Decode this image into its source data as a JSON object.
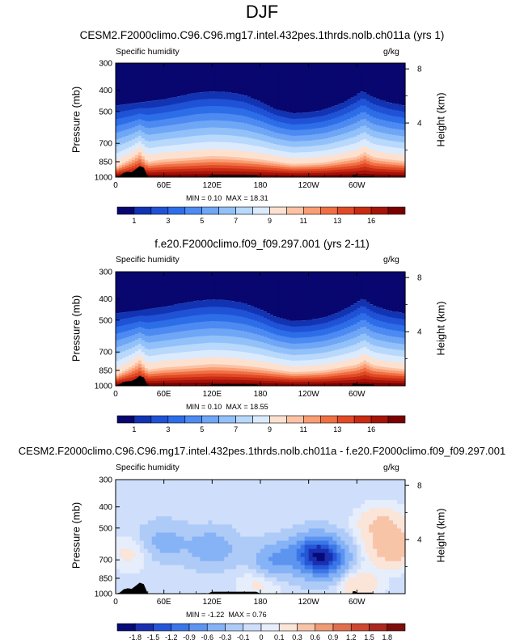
{
  "figure": {
    "title": "DJF",
    "variable_label": "Specific humidity",
    "units_label": "g/kg",
    "left_axis_label": "Pressure (mb)",
    "right_axis_label": "Height (km)"
  },
  "colors": {
    "abs_palette": [
      "#08066f",
      "#1234b3",
      "#2052d6",
      "#2d6ee8",
      "#4d8af2",
      "#6fa6f6",
      "#92c1fa",
      "#b8d8fc",
      "#dbebfd",
      "#fde1d0",
      "#fcc2a3",
      "#f99d74",
      "#f07044",
      "#e04a26",
      "#c92a12",
      "#a51408",
      "#7a0000"
    ],
    "diff_palette": [
      "#070b77",
      "#1a2fb0",
      "#2456d6",
      "#3b76e8",
      "#5d94f0",
      "#86b2f6",
      "#aecbf8",
      "#cfdffb",
      "#e6eefc",
      "#fbe4d8",
      "#f7c4a8",
      "#ef9b76",
      "#e06f4d",
      "#cc4832",
      "#aa281d",
      "#7c0d0a"
    ],
    "topography": "#000000"
  },
  "chart_data": [
    {
      "type": "heatmap",
      "panel": 1,
      "title": "CESM2.F2000climo.C96.C96.mg17.intel.432pes.1thrds.nolb.ch011a (yrs 1)",
      "variable": "Specific humidity",
      "units": "g/kg",
      "xlabel": "",
      "ylabel": "Pressure (mb)",
      "ylabel_right": "Height (km)",
      "x_ticks": [
        "0",
        "60E",
        "120E",
        "180",
        "120W",
        "60W"
      ],
      "x_tick_values": [
        0,
        60,
        120,
        180,
        240,
        300
      ],
      "xlim": [
        0,
        360
      ],
      "y_ticks": [
        "300",
        "400",
        "500",
        "700",
        "850",
        "1000"
      ],
      "y_tick_values": [
        300,
        400,
        500,
        700,
        850,
        1000
      ],
      "ylim": [
        300,
        1000
      ],
      "right_ticks": [
        "8",
        "4"
      ],
      "right_tick_values": [
        8,
        4
      ],
      "min": 0.1,
      "max": 18.31,
      "min_label": "MIN =",
      "min_text": "0.10",
      "max_label": "MAX =",
      "max_text": "18.31",
      "colorbar_labels": [
        "1",
        "3",
        "5",
        "7",
        "9",
        "11",
        "13",
        "16"
      ],
      "tropopause_pressure": [
        [
          0,
          470
        ],
        [
          20,
          460
        ],
        [
          40,
          450
        ],
        [
          60,
          440
        ],
        [
          80,
          425
        ],
        [
          100,
          410
        ],
        [
          120,
          405
        ],
        [
          140,
          408
        ],
        [
          160,
          420
        ],
        [
          180,
          450
        ],
        [
          200,
          490
        ],
        [
          220,
          510
        ],
        [
          240,
          505
        ],
        [
          260,
          490
        ],
        [
          280,
          460
        ],
        [
          300,
          420
        ],
        [
          305,
          405
        ],
        [
          310,
          408
        ],
        [
          320,
          430
        ],
        [
          340,
          455
        ],
        [
          360,
          470
        ]
      ],
      "surface_moist_top": [
        [
          0,
          900
        ],
        [
          20,
          820
        ],
        [
          30,
          770
        ],
        [
          40,
          850
        ],
        [
          60,
          830
        ],
        [
          80,
          820
        ],
        [
          100,
          810
        ],
        [
          120,
          800
        ],
        [
          140,
          805
        ],
        [
          160,
          815
        ],
        [
          180,
          830
        ],
        [
          200,
          850
        ],
        [
          220,
          870
        ],
        [
          240,
          865
        ],
        [
          260,
          855
        ],
        [
          280,
          830
        ],
        [
          300,
          805
        ],
        [
          310,
          770
        ],
        [
          320,
          810
        ],
        [
          340,
          830
        ],
        [
          360,
          845
        ]
      ],
      "topography_pressure": [
        [
          0,
          1000
        ],
        [
          5,
          990
        ],
        [
          10,
          955
        ],
        [
          15,
          945
        ],
        [
          20,
          950
        ],
        [
          25,
          920
        ],
        [
          30,
          890
        ],
        [
          35,
          905
        ],
        [
          40,
          1000
        ],
        [
          55,
          1000
        ],
        [
          110,
          995
        ],
        [
          112,
          995
        ],
        [
          114,
          1000
        ],
        [
          120,
          980
        ],
        [
          175,
          980
        ],
        [
          180,
          1000
        ],
        [
          294,
          1000
        ],
        [
          295,
          975
        ],
        [
          298,
          975
        ],
        [
          300,
          990
        ],
        [
          320,
          990
        ],
        [
          322,
          1000
        ],
        [
          360,
          1000
        ]
      ]
    },
    {
      "type": "heatmap",
      "panel": 2,
      "title": "f.e20.F2000climo.f09_f09.297.001 (yrs 2-11)",
      "variable": "Specific humidity",
      "units": "g/kg",
      "xlabel": "",
      "ylabel": "Pressure (mb)",
      "ylabel_right": "Height (km)",
      "x_ticks": [
        "0",
        "60E",
        "120E",
        "180",
        "120W",
        "60W"
      ],
      "x_tick_values": [
        0,
        60,
        120,
        180,
        240,
        300
      ],
      "xlim": [
        0,
        360
      ],
      "y_ticks": [
        "300",
        "400",
        "500",
        "700",
        "850",
        "1000"
      ],
      "y_tick_values": [
        300,
        400,
        500,
        700,
        850,
        1000
      ],
      "ylim": [
        300,
        1000
      ],
      "right_ticks": [
        "8",
        "4"
      ],
      "right_tick_values": [
        8,
        4
      ],
      "min": 0.1,
      "max": 18.55,
      "min_label": "MIN =",
      "min_text": "0.10",
      "max_label": "MAX =",
      "max_text": "18.55",
      "colorbar_labels": [
        "1",
        "3",
        "5",
        "7",
        "9",
        "11",
        "13",
        "16"
      ],
      "tropopause_pressure": [
        [
          0,
          465
        ],
        [
          20,
          455
        ],
        [
          40,
          445
        ],
        [
          60,
          435
        ],
        [
          80,
          420
        ],
        [
          100,
          408
        ],
        [
          120,
          402
        ],
        [
          140,
          405
        ],
        [
          160,
          418
        ],
        [
          180,
          445
        ],
        [
          200,
          485
        ],
        [
          220,
          505
        ],
        [
          240,
          500
        ],
        [
          260,
          485
        ],
        [
          280,
          455
        ],
        [
          300,
          415
        ],
        [
          305,
          400
        ],
        [
          310,
          404
        ],
        [
          320,
          428
        ],
        [
          340,
          452
        ],
        [
          360,
          465
        ]
      ],
      "surface_moist_top": [
        [
          0,
          895
        ],
        [
          20,
          815
        ],
        [
          30,
          765
        ],
        [
          40,
          845
        ],
        [
          60,
          825
        ],
        [
          80,
          815
        ],
        [
          100,
          805
        ],
        [
          120,
          795
        ],
        [
          140,
          800
        ],
        [
          160,
          810
        ],
        [
          180,
          825
        ],
        [
          200,
          845
        ],
        [
          220,
          865
        ],
        [
          240,
          860
        ],
        [
          260,
          850
        ],
        [
          280,
          825
        ],
        [
          300,
          800
        ],
        [
          310,
          765
        ],
        [
          320,
          805
        ],
        [
          340,
          825
        ],
        [
          360,
          840
        ]
      ],
      "topography_pressure": [
        [
          0,
          1000
        ],
        [
          5,
          985
        ],
        [
          10,
          960
        ],
        [
          15,
          955
        ],
        [
          20,
          950
        ],
        [
          25,
          930
        ],
        [
          30,
          900
        ],
        [
          35,
          915
        ],
        [
          40,
          1000
        ],
        [
          55,
          1000
        ],
        [
          110,
          995
        ],
        [
          112,
          990
        ],
        [
          114,
          1000
        ],
        [
          120,
          985
        ],
        [
          175,
          985
        ],
        [
          180,
          1000
        ],
        [
          294,
          1000
        ],
        [
          295,
          975
        ],
        [
          298,
          975
        ],
        [
          300,
          985
        ],
        [
          320,
          985
        ],
        [
          322,
          1000
        ],
        [
          360,
          1000
        ]
      ]
    },
    {
      "type": "heatmap",
      "panel": 3,
      "title": "CESM2.F2000climo.C96.C96.mg17.intel.432pes.1thrds.nolb.ch011a - f.e20.F2000climo.f09_f09.297.001",
      "variable": "Specific humidity",
      "units": "g/kg",
      "xlabel": "",
      "ylabel": "Pressure (mb)",
      "ylabel_right": "Height (km)",
      "x_ticks": [
        "0",
        "60E",
        "120E",
        "180",
        "120W",
        "60W"
      ],
      "x_tick_values": [
        0,
        60,
        120,
        180,
        240,
        300
      ],
      "xlim": [
        0,
        360
      ],
      "y_ticks": [
        "300",
        "400",
        "500",
        "700",
        "850",
        "1000"
      ],
      "y_tick_values": [
        300,
        400,
        500,
        700,
        850,
        1000
      ],
      "ylim": [
        300,
        1000
      ],
      "right_ticks": [
        "8",
        "4"
      ],
      "right_tick_values": [
        8,
        4
      ],
      "min": -1.22,
      "max": 0.76,
      "min_label": "MIN =",
      "min_text": "-1.22",
      "max_label": "MAX =",
      "max_text": "0.76",
      "colorbar_labels": [
        "-1.8",
        "-1.5",
        "-1.2",
        "-0.9",
        "-0.6",
        "-0.3",
        "-0.1",
        "0",
        "0.1",
        "0.3",
        "0.6",
        "0.9",
        "1.2",
        "1.5",
        "1.8"
      ],
      "anomaly_features": [
        {
          "lon": 250,
          "p": 640,
          "value": -1.2
        },
        {
          "lon": 200,
          "p": 700,
          "value": -0.6
        },
        {
          "lon": 260,
          "p": 720,
          "value": -0.9
        },
        {
          "lon": 120,
          "p": 620,
          "value": -0.5
        },
        {
          "lon": 60,
          "p": 580,
          "value": -0.4
        },
        {
          "lon": 345,
          "p": 620,
          "value": 0.6
        },
        {
          "lon": 330,
          "p": 480,
          "value": 0.4
        },
        {
          "lon": 20,
          "p": 650,
          "value": 0.2
        },
        {
          "lon": 180,
          "p": 900,
          "value": 0.2
        },
        {
          "lon": 300,
          "p": 900,
          "value": 0.3
        }
      ],
      "topography_pressure": [
        [
          0,
          1000
        ],
        [
          5,
          990
        ],
        [
          10,
          955
        ],
        [
          15,
          945
        ],
        [
          20,
          950
        ],
        [
          25,
          920
        ],
        [
          30,
          890
        ],
        [
          35,
          905
        ],
        [
          40,
          1000
        ],
        [
          55,
          1000
        ],
        [
          110,
          995
        ],
        [
          112,
          995
        ],
        [
          114,
          1000
        ],
        [
          120,
          980
        ],
        [
          175,
          980
        ],
        [
          180,
          1000
        ],
        [
          294,
          1000
        ],
        [
          295,
          975
        ],
        [
          298,
          975
        ],
        [
          300,
          990
        ],
        [
          320,
          990
        ],
        [
          322,
          1000
        ],
        [
          360,
          1000
        ]
      ]
    }
  ]
}
